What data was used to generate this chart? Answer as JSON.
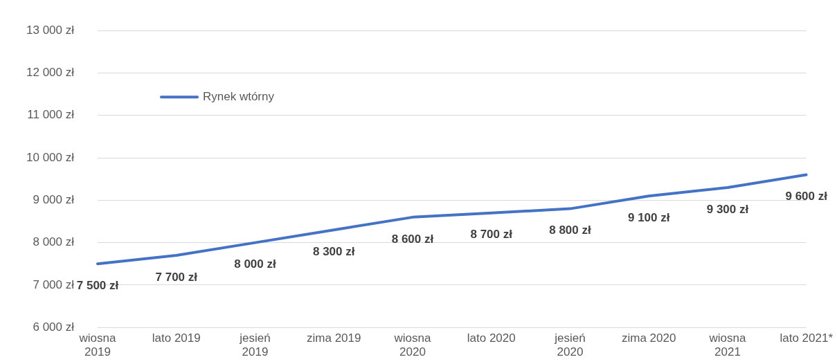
{
  "chart_data": {
    "type": "line",
    "categories": [
      "wiosna 2019",
      "lato 2019",
      "jesień 2019",
      "zima 2019",
      "wiosna 2020",
      "lato 2020",
      "jesień 2020",
      "zima 2020",
      "wiosna 2021",
      "lato 2021*"
    ],
    "series": [
      {
        "name": "Rynek wtórny",
        "color": "#4472c4",
        "values": [
          7500,
          7700,
          8000,
          8300,
          8600,
          8700,
          8800,
          9100,
          9300,
          9600
        ],
        "value_labels": [
          "7 500 zł",
          "7 700 zł",
          "8 000 zł",
          "8 300 zł",
          "8 600 zł",
          "8 700 zł",
          "8 800 zł",
          "9 100 zł",
          "9 300 zł",
          "9 600 zł"
        ]
      }
    ],
    "ylim": [
      6000,
      13000
    ],
    "yticks": [
      {
        "value": 6000,
        "label": "6 000 zł"
      },
      {
        "value": 7000,
        "label": "7 000 zł"
      },
      {
        "value": 8000,
        "label": "8 000 zł"
      },
      {
        "value": 9000,
        "label": "9 000 zł"
      },
      {
        "value": 10000,
        "label": "10 000 zł"
      },
      {
        "value": 11000,
        "label": "11 000 zł"
      },
      {
        "value": 12000,
        "label": "12 000 zł"
      },
      {
        "value": 13000,
        "label": "13 000 zł"
      }
    ],
    "grid": "y",
    "legend": "top left",
    "marker": "none",
    "line_style": "solid"
  }
}
